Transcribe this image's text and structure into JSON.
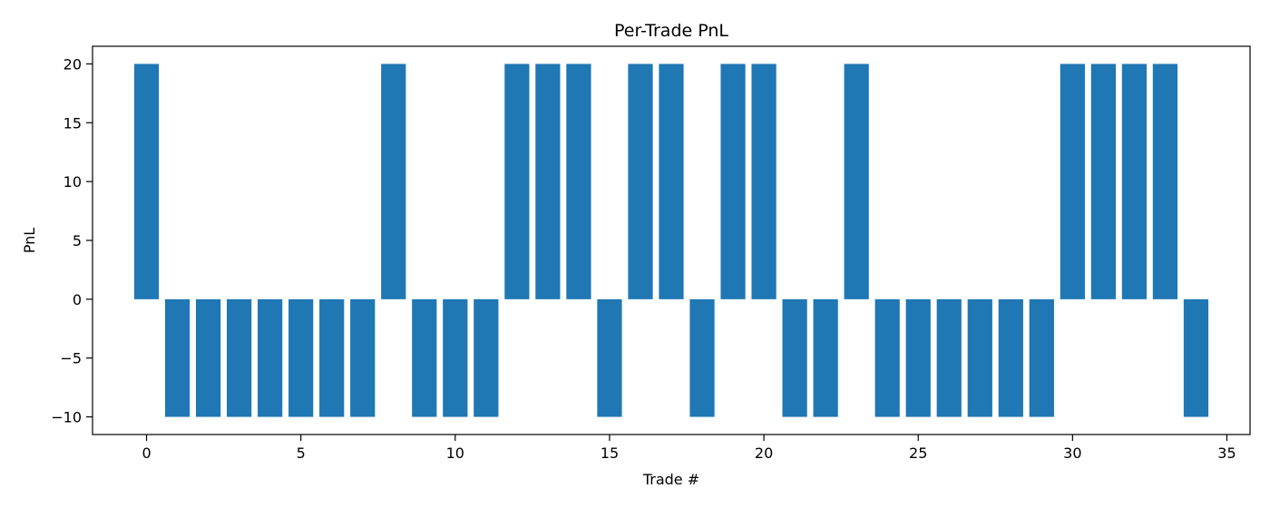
{
  "chart_data": {
    "type": "bar",
    "title": "Per-Trade PnL",
    "xlabel": "Trade #",
    "ylabel": "PnL",
    "x": [
      0,
      1,
      2,
      3,
      4,
      5,
      6,
      7,
      8,
      9,
      10,
      11,
      12,
      13,
      14,
      15,
      16,
      17,
      18,
      19,
      20,
      21,
      22,
      23,
      24,
      25,
      26,
      27,
      28,
      29,
      30,
      31,
      32,
      33,
      34
    ],
    "values": [
      20,
      -10,
      -10,
      -10,
      -10,
      -10,
      -10,
      -10,
      20,
      -10,
      -10,
      -10,
      20,
      20,
      20,
      -10,
      20,
      20,
      -10,
      20,
      20,
      -10,
      -10,
      20,
      -10,
      -10,
      -10,
      -10,
      -10,
      -10,
      20,
      20,
      20,
      20,
      -10
    ],
    "xlim": [
      -1.75,
      35.75
    ],
    "ylim": [
      -11.5,
      21.5
    ],
    "xticks": [
      0,
      5,
      10,
      15,
      20,
      25,
      30,
      35
    ],
    "yticks": [
      -10,
      -5,
      0,
      5,
      10,
      15,
      20
    ],
    "xtick_labels": [
      "0",
      "5",
      "10",
      "15",
      "20",
      "25",
      "30",
      "35"
    ],
    "ytick_labels": [
      "−10",
      "−5",
      "0",
      "5",
      "10",
      "15",
      "20"
    ],
    "bar_color": "#1f77b4",
    "grid": false,
    "legend": "none"
  }
}
